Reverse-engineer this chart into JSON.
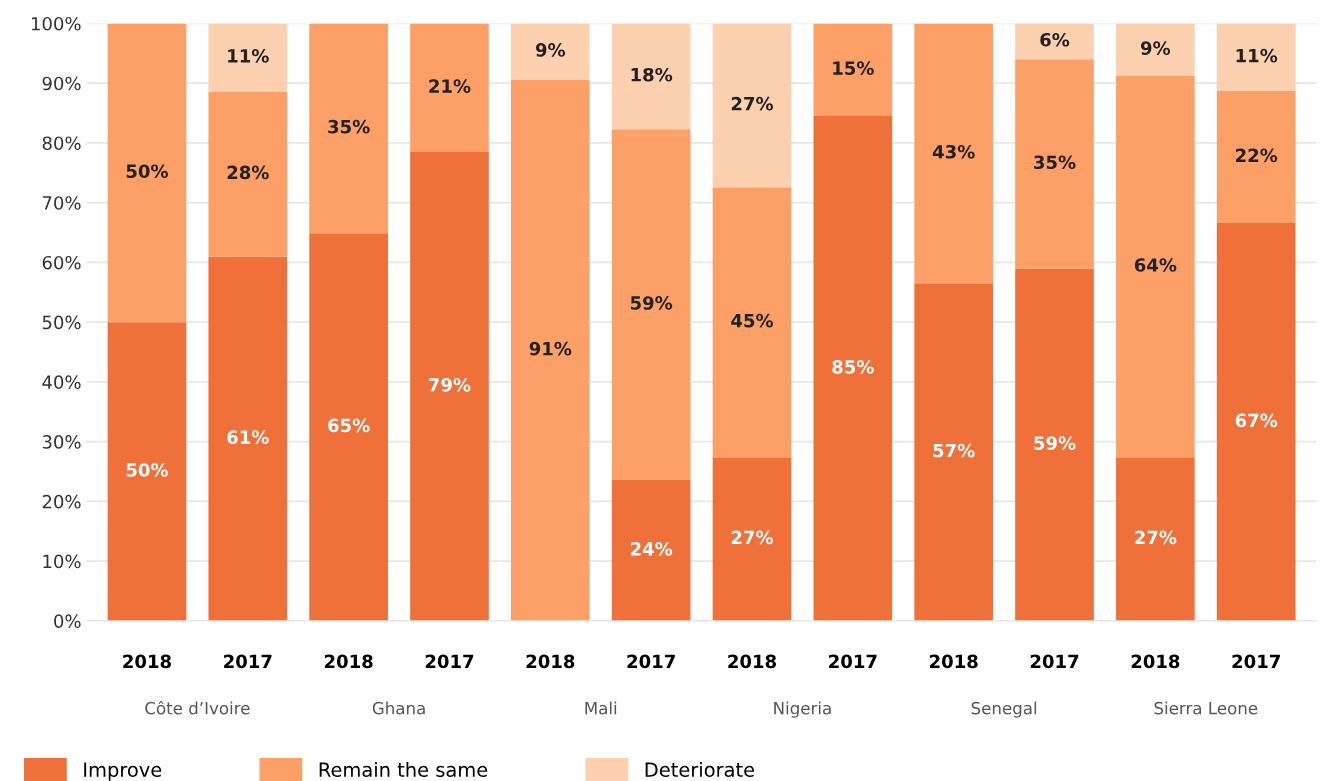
{
  "chart_data": {
    "type": "bar",
    "stacked": true,
    "categories": [
      "2018",
      "2017",
      "2018",
      "2017",
      "2018",
      "2017",
      "2018",
      "2017",
      "2018",
      "2017",
      "2018",
      "2017"
    ],
    "annotations": [
      "Côte d’Ivoire",
      "Ghana",
      "Mali",
      "Nigeria",
      "Senegal",
      "Sierra Leone"
    ],
    "series": [
      {
        "name": "Improve",
        "color": "#f0703a",
        "values": [
          50,
          61,
          64.9,
          78.5,
          null,
          23.6,
          27.4,
          84.5,
          56.5,
          59,
          27.4,
          66.6
        ],
        "value_labels": [
          "50%",
          "61%",
          "65%",
          "79%",
          null,
          "24%",
          "27%",
          "85%",
          "57%",
          "59%",
          "27%",
          "67%"
        ]
      },
      {
        "name": "Remain the same",
        "color": "#fda068",
        "values": [
          50,
          27.6,
          35.1,
          21.5,
          90.6,
          58.7,
          45.2,
          15.5,
          43.5,
          35,
          63.8,
          22.1
        ],
        "value_labels": [
          "50%",
          "28%",
          "35%",
          "21%",
          "91%",
          "59%",
          "45%",
          "15%",
          "43%",
          "35%",
          "64%",
          "22%"
        ]
      },
      {
        "name": "Deteriorate",
        "color": "#fdd0b0",
        "values": [
          null,
          11.4,
          null,
          null,
          9.4,
          17.7,
          27.4,
          null,
          null,
          6,
          8.8,
          11.3
        ],
        "value_labels": [
          null,
          "11%",
          null,
          null,
          "9%",
          "18%",
          "27%",
          null,
          null,
          "6%",
          "9%",
          "11%"
        ]
      }
    ],
    "ylim": [
      0,
      100
    ],
    "yticks": [
      {
        "value": 0,
        "label": "0%"
      },
      {
        "value": 10,
        "label": "10%"
      },
      {
        "value": 20,
        "label": "20%"
      },
      {
        "value": 30,
        "label": "30%"
      },
      {
        "value": 40,
        "label": "40%"
      },
      {
        "value": 50,
        "label": "50%"
      },
      {
        "value": 60,
        "label": "60%"
      },
      {
        "value": 70,
        "label": "70%"
      },
      {
        "value": 80,
        "label": "80%"
      },
      {
        "value": 90,
        "label": "90%"
      },
      {
        "value": 100,
        "label": "100%"
      }
    ],
    "grid": "y",
    "legend": "bottom left"
  }
}
